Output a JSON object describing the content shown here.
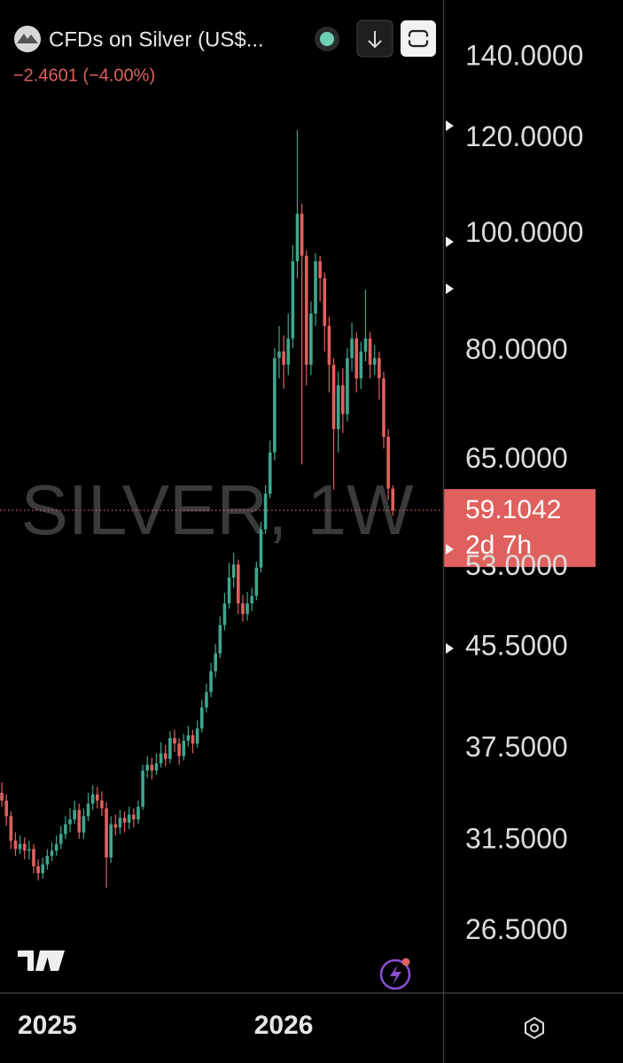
{
  "chart_data": {
    "type": "candlestick",
    "title": "CFDs on Silver (US$...",
    "subtitle": "−2.4601 (−4.00%)",
    "watermark": "SILVER, 1W",
    "countdown": "2d 7h",
    "log_scale": true,
    "up_color": "#3fa68c",
    "down_color": "#e0605e",
    "categories": [
      null,
      null,
      null,
      null,
      null,
      null,
      null,
      null,
      null,
      null,
      "2025",
      null,
      null,
      null,
      null,
      null,
      null,
      null,
      null,
      null,
      null,
      null,
      null,
      null,
      null,
      null,
      null,
      null,
      null,
      null,
      null,
      null,
      null,
      null,
      null,
      null,
      null,
      null,
      null,
      null,
      null,
      null,
      null,
      null,
      null,
      null,
      null,
      null,
      null,
      null,
      null,
      null,
      null,
      null,
      null,
      null,
      null,
      null,
      null,
      null,
      null,
      null,
      "2026",
      null,
      null,
      null,
      null,
      null,
      null,
      null,
      null,
      null,
      null,
      null,
      null,
      null,
      null,
      null,
      null,
      null,
      null,
      null,
      null,
      null,
      null,
      null,
      null
    ],
    "open": [
      34.5,
      34.0,
      33.0,
      31.5,
      31.0,
      31.3,
      30.9,
      31.0,
      30.0,
      29.6,
      30.1,
      30.6,
      30.9,
      31.3,
      31.9,
      32.5,
      32.8,
      33.4,
      32.0,
      33.0,
      33.8,
      34.4,
      34.0,
      33.5,
      30.5,
      32.5,
      32.3,
      32.9,
      32.6,
      33.1,
      32.8,
      33.6,
      36.0,
      36.4,
      36.0,
      36.5,
      37.2,
      36.8,
      38.3,
      37.9,
      37.0,
      38.1,
      38.5,
      37.9,
      39.0,
      40.6,
      41.8,
      43.5,
      45.0,
      47.5,
      49.5,
      52.0,
      53.3,
      49.5,
      48.5,
      49.5,
      50.2,
      53.0,
      57.0,
      61.0,
      66.0,
      79.0,
      80.0,
      78.0,
      82.0,
      95.0,
      104.0,
      96.0,
      78.0,
      86.0,
      95.0,
      92.0,
      84.0,
      78.0,
      69.0,
      75.0,
      71.0,
      79.0,
      82.0,
      76.0,
      80.0,
      82.0,
      78.0,
      79.0,
      76.0,
      68.0,
      61.6
    ],
    "high": [
      35.2,
      34.4,
      33.3,
      32.0,
      31.8,
      31.7,
      31.5,
      31.3,
      30.4,
      30.5,
      31.0,
      31.4,
      31.8,
      32.4,
      33.0,
      33.5,
      34.0,
      33.8,
      33.5,
      34.5,
      35.0,
      34.9,
      34.6,
      33.9,
      33.0,
      33.1,
      33.4,
      33.3,
      33.6,
      33.5,
      34.0,
      36.4,
      37.0,
      36.9,
      37.2,
      38.0,
      37.8,
      38.8,
      38.9,
      38.3,
      38.6,
      39.2,
      38.9,
      39.6,
      41.2,
      42.5,
      44.2,
      45.8,
      48.3,
      50.5,
      53.5,
      54.5,
      53.8,
      50.3,
      50.6,
      51.0,
      53.6,
      57.8,
      62.0,
      67.5,
      80.5,
      84.0,
      82.5,
      86.0,
      98.0,
      122.0,
      106.0,
      97.0,
      88.0,
      96.5,
      96.0,
      93.0,
      85.5,
      79.0,
      77.0,
      77.5,
      80.5,
      84.5,
      83.0,
      81.5,
      90.0,
      83.0,
      81.0,
      80.0,
      77.0,
      69.0,
      62.0
    ],
    "low": [
      33.6,
      32.4,
      31.0,
      30.6,
      30.7,
      30.4,
      30.4,
      29.6,
      29.2,
      29.3,
      29.8,
      30.3,
      30.6,
      31.0,
      31.6,
      32.0,
      32.5,
      31.6,
      31.6,
      32.7,
      33.4,
      33.5,
      33.0,
      28.8,
      30.2,
      31.8,
      31.9,
      32.0,
      32.2,
      32.3,
      32.5,
      33.4,
      35.5,
      35.4,
      35.7,
      36.2,
      36.3,
      36.5,
      37.3,
      36.4,
      36.7,
      37.7,
      37.2,
      37.6,
      38.7,
      40.2,
      41.4,
      43.0,
      44.6,
      47.0,
      49.0,
      51.0,
      48.5,
      47.8,
      47.9,
      48.8,
      49.8,
      52.5,
      56.5,
      60.5,
      65.0,
      76.0,
      74.5,
      76.5,
      80.5,
      92.0,
      64.5,
      75.0,
      76.5,
      84.0,
      88.0,
      80.0,
      74.0,
      61.5,
      66.0,
      68.5,
      70.0,
      77.0,
      74.0,
      74.5,
      78.5,
      76.0,
      76.5,
      73.0,
      66.5,
      60.3,
      58.5
    ],
    "close": [
      34.0,
      33.0,
      31.5,
      31.0,
      31.3,
      30.9,
      31.0,
      30.0,
      29.6,
      30.1,
      30.6,
      30.9,
      31.3,
      31.9,
      32.5,
      32.8,
      33.4,
      32.0,
      33.0,
      33.8,
      34.4,
      34.0,
      33.5,
      30.5,
      32.5,
      32.3,
      32.9,
      32.6,
      33.1,
      32.8,
      33.6,
      36.0,
      36.4,
      36.0,
      36.5,
      37.2,
      36.8,
      38.3,
      37.9,
      37.0,
      38.1,
      38.5,
      37.9,
      39.0,
      40.6,
      41.8,
      43.5,
      45.0,
      47.5,
      49.5,
      52.0,
      53.3,
      49.5,
      48.5,
      49.5,
      50.2,
      53.0,
      57.0,
      61.0,
      66.0,
      79.0,
      80.0,
      78.0,
      82.0,
      95.0,
      104.0,
      96.0,
      78.0,
      86.0,
      95.0,
      92.0,
      84.0,
      78.0,
      69.0,
      75.0,
      71.0,
      79.0,
      82.0,
      76.0,
      80.0,
      82.0,
      78.0,
      79.0,
      76.0,
      68.0,
      61.6,
      59.1042
    ],
    "last_price": {
      "value": 59.1042,
      "label": "59.1042"
    },
    "ylim": [
      23.6,
      156.3
    ],
    "yticks": [
      {
        "value": 140,
        "label": "140.0000"
      },
      {
        "value": 120,
        "label": "120.0000"
      },
      {
        "value": 100,
        "label": "100.0000"
      },
      {
        "value": 80,
        "label": "80.0000"
      },
      {
        "value": 65,
        "label": "65.0000"
      },
      {
        "value": 53,
        "label": "53.0000"
      },
      {
        "value": 45.5,
        "label": "45.5000"
      },
      {
        "value": 37.5,
        "label": "37.5000"
      },
      {
        "value": 31.5,
        "label": "31.5000"
      },
      {
        "value": 26.5,
        "label": "26.5000"
      }
    ],
    "grid": false
  }
}
